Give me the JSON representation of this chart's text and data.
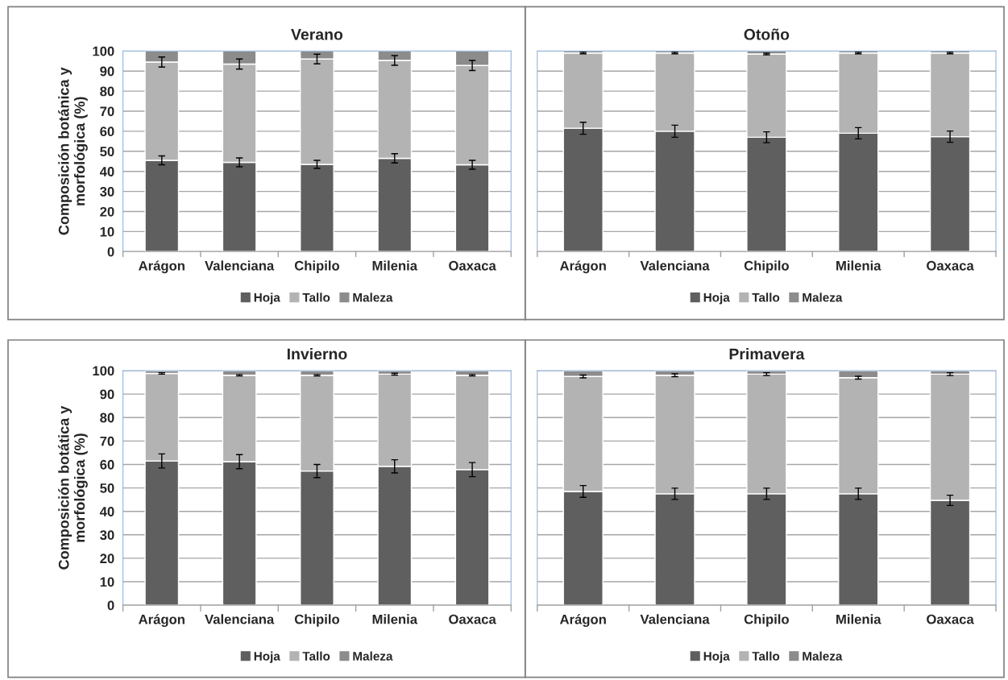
{
  "chart_data": [
    {
      "type": "bar",
      "stacked": true,
      "title": "Verano",
      "ylabel": "Composición botánica y\nmorfológica (%)",
      "categories": [
        "Arágon",
        "Valenciana",
        "Chipilo",
        "Milenia",
        "Oaxaca"
      ],
      "ylim": [
        0,
        100
      ],
      "yticks": [
        0,
        10,
        20,
        30,
        40,
        50,
        60,
        70,
        80,
        90,
        100
      ],
      "grid": "y",
      "legend": "bottom",
      "series": [
        {
          "name": "Hoja",
          "color": "#5f5f5f",
          "values": [
            45.5,
            44.5,
            43.5,
            46.5,
            43.3
          ],
          "errors": [
            2.2,
            2.2,
            2,
            2.3,
            2.2
          ]
        },
        {
          "name": "Tallo",
          "color": "#b3b3b3",
          "values": [
            49,
            49,
            52.5,
            48.8,
            49.5
          ],
          "errors": [
            2.5,
            2.5,
            2.4,
            2.4,
            2.5
          ]
        },
        {
          "name": "Maleza",
          "color": "#8c8c8c",
          "values": [
            5.5,
            6.5,
            4,
            4.7,
            7.2
          ]
        }
      ]
    },
    {
      "type": "bar",
      "stacked": true,
      "title": "Otoño",
      "categories": [
        "Arágon",
        "Valenciana",
        "Chipilo",
        "Milenia",
        "Oaxaca"
      ],
      "ylim": [
        0,
        100
      ],
      "yticks": [
        0,
        10,
        20,
        30,
        40,
        50,
        60,
        70,
        80,
        90,
        100
      ],
      "tick_labels": "x",
      "grid": "y",
      "legend": "bottom",
      "series": [
        {
          "name": "Hoja",
          "color": "#5f5f5f",
          "values": [
            61.5,
            60,
            57,
            59,
            57.3
          ],
          "errors": [
            3,
            3,
            2.7,
            2.8,
            2.8
          ]
        },
        {
          "name": "Tallo",
          "color": "#b3b3b3",
          "values": [
            37.5,
            39,
            41.5,
            40,
            41.7
          ],
          "errors": [
            0.4,
            0.4,
            0.4,
            0.4,
            0.4
          ]
        },
        {
          "name": "Maleza",
          "color": "#8c8c8c",
          "values": [
            1,
            1,
            1.5,
            1,
            1
          ]
        }
      ]
    },
    {
      "type": "bar",
      "stacked": true,
      "title": "Invierno",
      "ylabel": "Composición botática y\nmorfológica (%)",
      "categories": [
        "Arágon",
        "Valenciana",
        "Chipilo",
        "Milenia",
        "Oaxaca"
      ],
      "ylim": [
        0,
        100
      ],
      "yticks": [
        0,
        10,
        20,
        30,
        40,
        50,
        60,
        70,
        80,
        90,
        100
      ],
      "grid": "y",
      "legend": "bottom",
      "series": [
        {
          "name": "Hoja",
          "color": "#5f5f5f",
          "values": [
            61.5,
            61.2,
            57.2,
            59.2,
            57.8
          ],
          "errors": [
            3,
            3,
            2.8,
            2.8,
            3
          ]
        },
        {
          "name": "Tallo",
          "color": "#b3b3b3",
          "values": [
            37.3,
            36.8,
            40.8,
            39.3,
            40.2
          ],
          "errors": [
            0.3,
            0.3,
            0.3,
            0.4,
            0.3
          ]
        },
        {
          "name": "Maleza",
          "color": "#8c8c8c",
          "values": [
            1.2,
            2,
            2,
            1.5,
            2
          ]
        }
      ]
    },
    {
      "type": "bar",
      "stacked": true,
      "title": "Primavera",
      "categories": [
        "Arágon",
        "Valenciana",
        "Chipilo",
        "Milenia",
        "Oaxaca"
      ],
      "ylim": [
        0,
        100
      ],
      "yticks": [
        0,
        10,
        20,
        30,
        40,
        50,
        60,
        70,
        80,
        90,
        100
      ],
      "tick_labels": "x",
      "grid": "y",
      "legend": "bottom",
      "series": [
        {
          "name": "Hoja",
          "color": "#5f5f5f",
          "values": [
            48.5,
            47.5,
            47.5,
            47.5,
            44.7
          ],
          "errors": [
            2.5,
            2.4,
            2.4,
            2.4,
            2.2
          ]
        },
        {
          "name": "Tallo",
          "color": "#b3b3b3",
          "values": [
            49,
            50.5,
            51,
            49.5,
            53.8
          ],
          "errors": [
            0.6,
            0.6,
            0.6,
            0.6,
            0.6
          ]
        },
        {
          "name": "Maleza",
          "color": "#8c8c8c",
          "values": [
            2.5,
            2,
            1.5,
            3,
            1.5
          ]
        }
      ]
    }
  ]
}
